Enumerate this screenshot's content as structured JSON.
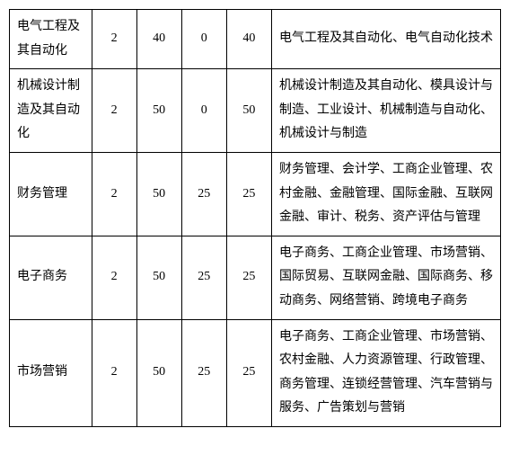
{
  "table": {
    "columns_width": {
      "name": 84,
      "num": 46,
      "desc": 234
    },
    "border_color": "#000000",
    "background_color": "#ffffff",
    "font_family": "SimSun",
    "font_size_pt": 10.5,
    "line_height": 1.9,
    "rows": [
      {
        "name": "电气工程及其自动化",
        "c1": "2",
        "c2": "40",
        "c3": "0",
        "c4": "40",
        "desc": "电气工程及其自动化、电气自动化技术"
      },
      {
        "name": "机械设计制造及其自动化",
        "c1": "2",
        "c2": "50",
        "c3": "0",
        "c4": "50",
        "desc": "机械设计制造及其自动化、模具设计与制造、工业设计、机械制造与自动化、机械设计与制造"
      },
      {
        "name": "财务管理",
        "c1": "2",
        "c2": "50",
        "c3": "25",
        "c4": "25",
        "desc": "财务管理、会计学、工商企业管理、农村金融、金融管理、国际金融、互联网金融、审计、税务、资产评估与管理"
      },
      {
        "name": "电子商务",
        "c1": "2",
        "c2": "50",
        "c3": "25",
        "c4": "25",
        "desc": "电子商务、工商企业管理、市场营销、国际贸易、互联网金融、国际商务、移动商务、网络营销、跨境电子商务"
      },
      {
        "name": "市场营销",
        "c1": "2",
        "c2": "50",
        "c3": "25",
        "c4": "25",
        "desc": "电子商务、工商企业管理、市场营销、农村金融、人力资源管理、行政管理、商务管理、连锁经营管理、汽车营销与服务、广告策划与营销"
      }
    ]
  }
}
